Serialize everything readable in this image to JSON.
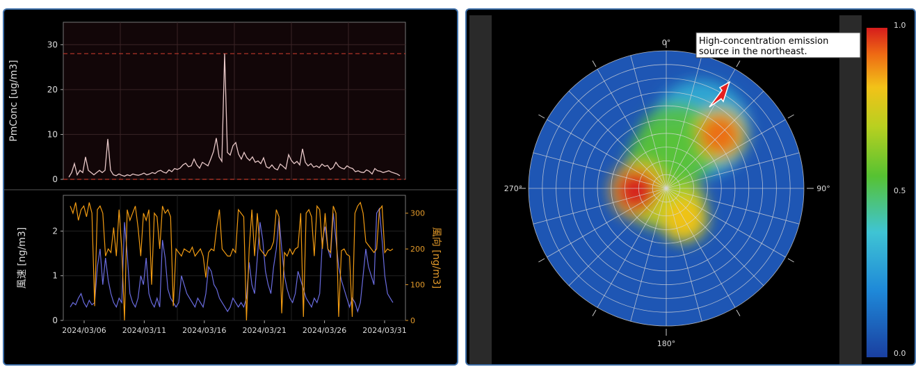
{
  "colors": {
    "panel_border": "#3e6fa8",
    "pm_line": "#e8c8c8",
    "threshold_line": "#c0392b",
    "wind_speed_line": "#6a6ce0",
    "wind_dir_line": "#f39c12",
    "dir_axis_text": "#e39a2a"
  },
  "chart_data": [
    {
      "type": "line",
      "ylabel": "PmConc [ug/m3]",
      "ylim": [
        0,
        35
      ],
      "yticks": [
        "0",
        "10",
        "20",
        "30"
      ],
      "threshold_lines": [
        28,
        0
      ],
      "grid": true,
      "series": [
        {
          "values": [
            0.5,
            1.5,
            3.5,
            1,
            2,
            1.5,
            5,
            2,
            1.5,
            1,
            1.5,
            2,
            1.5,
            2,
            9,
            2,
            1,
            0.8,
            1.2,
            0.9,
            0.7,
            1,
            0.8,
            1.2,
            1,
            0.9,
            1.1,
            1.4,
            1,
            1.2,
            1.5,
            1.3,
            1.8,
            2,
            1.6,
            1.4,
            2.1,
            1.7,
            2.4,
            2.2,
            2.5,
            3.2,
            3.6,
            2.8,
            3,
            4.5,
            3.2,
            2.5,
            3.8,
            3.4,
            3,
            4.5,
            6.2,
            9.2,
            5,
            4,
            28,
            6,
            5.4,
            7.5,
            8.2,
            5.6,
            4.5,
            6,
            4.8,
            4.2,
            5,
            3.8,
            4.1,
            3.5,
            4.8,
            2.8,
            2.5,
            3.2,
            2.4,
            2.1,
            3.4,
            2.9,
            2.3,
            5.5,
            4.2,
            3.5,
            4,
            3.2,
            6.8,
            3.8,
            3,
            3.5,
            2.7,
            3,
            2.6,
            3.4,
            2.9,
            3.1,
            2.2,
            2.6,
            3.8,
            2.9,
            2.5,
            2.3,
            3,
            2.6,
            2.4,
            1.7,
            1.9,
            1.6,
            1.5,
            2.1,
            1.8,
            1.2,
            2.4,
            1.9,
            1.8,
            1.5,
            1.7,
            1.9,
            1.6,
            1.4,
            1.2,
            0.8
          ]
        }
      ]
    },
    {
      "type": "line",
      "ylabel": "風速 [ng/m3]",
      "ylabel_right": "風向 [ng/m3]",
      "ylim": [
        0,
        2.8
      ],
      "ylim_right": [
        0,
        350
      ],
      "yticks": [
        "0",
        "1",
        "2"
      ],
      "yticks_right": [
        "0",
        "100",
        "200",
        "300"
      ],
      "xticks": [
        "2024/03/06",
        "2024/03/11",
        "2024/03/16",
        "2024/03/21",
        "2024/03/26",
        "2024/03/31"
      ],
      "grid": true,
      "series": [
        {
          "axis": "left",
          "values": [
            0.3,
            0.4,
            0.35,
            0.5,
            0.6,
            0.4,
            0.3,
            0.45,
            0.35,
            0.4,
            1.2,
            1.6,
            0.8,
            1.4,
            0.9,
            0.6,
            0.4,
            0.3,
            0.5,
            0.4,
            2.2,
            1.5,
            0.6,
            0.4,
            0.3,
            0.5,
            1,
            0.8,
            1.4,
            0.6,
            0.4,
            0.3,
            0.5,
            0.3,
            1.8,
            1.4,
            0.7,
            0.5,
            0.4,
            0.3,
            0.4,
            1,
            0.8,
            0.6,
            0.5,
            0.4,
            0.3,
            0.5,
            0.4,
            0.3,
            0.6,
            1.2,
            1.1,
            0.8,
            0.7,
            0.5,
            0.4,
            0.3,
            0.2,
            0.3,
            0.5,
            0.4,
            0.3,
            0.4,
            0.3,
            0.5,
            1.3,
            0.8,
            0.6,
            1.4,
            2.2,
            1.8,
            1.1,
            0.8,
            0.6,
            1.2,
            1.6,
            2.3,
            1.6,
            1,
            0.7,
            0.5,
            0.4,
            0.6,
            1.1,
            0.9,
            0.7,
            0.5,
            0.4,
            0.3,
            0.5,
            0.4,
            0.6,
            1.8,
            2.1,
            1.6,
            1.4,
            2.4,
            1.8,
            1.2,
            0.9,
            0.7,
            0.5,
            0.3,
            0.5,
            0.4,
            0.2,
            0.4,
            1,
            1.6,
            1.2,
            1,
            0.8,
            2.4,
            2.5,
            1.8,
            1,
            0.6,
            0.5,
            0.4
          ]
        },
        {
          "axis": "right",
          "values": [
            320,
            300,
            330,
            280,
            310,
            320,
            290,
            330,
            300,
            40,
            310,
            320,
            300,
            180,
            200,
            190,
            260,
            180,
            310,
            200,
            0,
            310,
            280,
            300,
            320,
            260,
            180,
            300,
            280,
            310,
            100,
            300,
            290,
            200,
            320,
            300,
            310,
            290,
            40,
            200,
            190,
            180,
            200,
            195,
            190,
            205,
            180,
            190,
            200,
            180,
            120,
            190,
            200,
            195,
            260,
            310,
            200,
            190,
            180,
            180,
            200,
            190,
            310,
            300,
            290,
            0,
            200,
            310,
            180,
            300,
            200,
            190,
            180,
            195,
            200,
            220,
            310,
            290,
            20,
            190,
            180,
            200,
            185,
            200,
            205,
            300,
            10,
            300,
            310,
            290,
            180,
            320,
            310,
            200,
            300,
            200,
            190,
            320,
            300,
            10,
            195,
            200,
            185,
            180,
            10,
            300,
            320,
            330,
            300,
            220,
            210,
            200,
            190,
            200,
            310,
            320,
            190,
            200,
            195,
            200
          ]
        }
      ]
    },
    {
      "type": "heatmap",
      "projection": "polar",
      "direction_labels": [
        "0°",
        "90°",
        "180°",
        "270°"
      ],
      "colorbar": {
        "min": 0.0,
        "max": 1.0,
        "tick_labels": [
          "1.0",
          "0.5",
          "0.0"
        ]
      },
      "annotation": [
        "High-concentration emission",
        "source in the northeast."
      ],
      "hotspots": [
        {
          "azimuth_deg": 45,
          "radius_frac": 0.55,
          "intensity": 0.95
        },
        {
          "azimuth_deg": 265,
          "radius_frac": 0.22,
          "intensity": 1.0
        },
        {
          "azimuth_deg": 150,
          "radius_frac": 0.25,
          "intensity": 0.9
        },
        {
          "azimuth_deg": 20,
          "radius_frac": 0.35,
          "intensity": 0.55
        }
      ]
    }
  ]
}
